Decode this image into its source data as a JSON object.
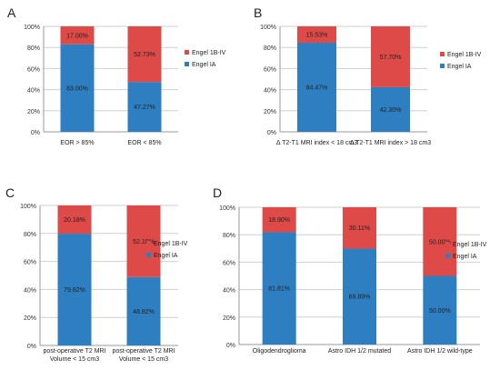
{
  "chart_data": [
    {
      "type": "bar",
      "stacked": true,
      "panel_label": "A",
      "categories": [
        "EOR > 85%",
        "EOR < 85%"
      ],
      "series": [
        {
          "name": "Engel IA",
          "values": [
            83.0,
            47.27
          ],
          "labels": [
            "83.00%",
            "47.27%"
          ],
          "color": "#2e7fc1"
        },
        {
          "name": "Engel 1B-IV",
          "values": [
            17.0,
            52.73
          ],
          "labels": [
            "17.00%",
            "52.73%"
          ],
          "color": "#de4a47"
        }
      ],
      "yticks": [
        "0%",
        "20%",
        "40%",
        "60%",
        "80%",
        "100%"
      ],
      "ylim": [
        0,
        100
      ],
      "legend": "right"
    },
    {
      "type": "bar",
      "stacked": true,
      "panel_label": "B",
      "categories": [
        "Δ T2-T1 MRI index < 18 cm3",
        "Δ T2-T1 MRI index > 18 cm3"
      ],
      "series": [
        {
          "name": "Engel IA",
          "values": [
            84.47,
            42.3
          ],
          "labels": [
            "84.47%",
            "42.30%"
          ],
          "color": "#2e7fc1"
        },
        {
          "name": "Engel 1B-IV",
          "values": [
            15.53,
            57.7
          ],
          "labels": [
            "15.53%",
            "57.70%"
          ],
          "color": "#de4a47"
        }
      ],
      "yticks": [
        "0%",
        "20%",
        "40%",
        "60%",
        "80%",
        "100%"
      ],
      "ylim": [
        0,
        100
      ],
      "legend": "right"
    },
    {
      "type": "bar",
      "stacked": true,
      "panel_label": "C",
      "categories": [
        [
          "post-operative T2 MRI",
          "Volume < 15 cm3"
        ],
        [
          "post-operative T2 MRI",
          "Volume < 15 cm3"
        ]
      ],
      "series": [
        {
          "name": "Engel IA",
          "values": [
            79.82,
            48.82
          ],
          "labels": [
            "79.82%",
            "48.82%"
          ],
          "color": "#2e7fc1"
        },
        {
          "name": "Engel 1B-IV",
          "values": [
            20.18,
            52.18
          ],
          "labels": [
            "20.18%",
            "52.18%"
          ],
          "color": "#de4a47"
        }
      ],
      "yticks": [
        "0%",
        "20%",
        "40%",
        "60%",
        "80%",
        "100%"
      ],
      "ylim": [
        0,
        100
      ],
      "legend": "right"
    },
    {
      "type": "bar",
      "stacked": true,
      "panel_label": "D",
      "categories": [
        "Oligodendroglioma",
        "Astro IDH 1/2 mutated",
        "Astro IDH 1/2 wild-type"
      ],
      "series": [
        {
          "name": "Engel IA",
          "values": [
            81.81,
            69.89,
            50.0
          ],
          "labels": [
            "81.81%",
            "69.89%",
            "50.00%"
          ],
          "color": "#2e7fc1"
        },
        {
          "name": "Engel 1B-IV",
          "values": [
            18.9,
            30.11,
            50.0
          ],
          "labels": [
            "18.90%",
            "30.11%",
            "50.00%"
          ],
          "color": "#de4a47"
        }
      ],
      "yticks": [
        "0%",
        "20%",
        "40%",
        "60%",
        "80%",
        "100%"
      ],
      "ylim": [
        0,
        100
      ],
      "legend": "right"
    }
  ]
}
